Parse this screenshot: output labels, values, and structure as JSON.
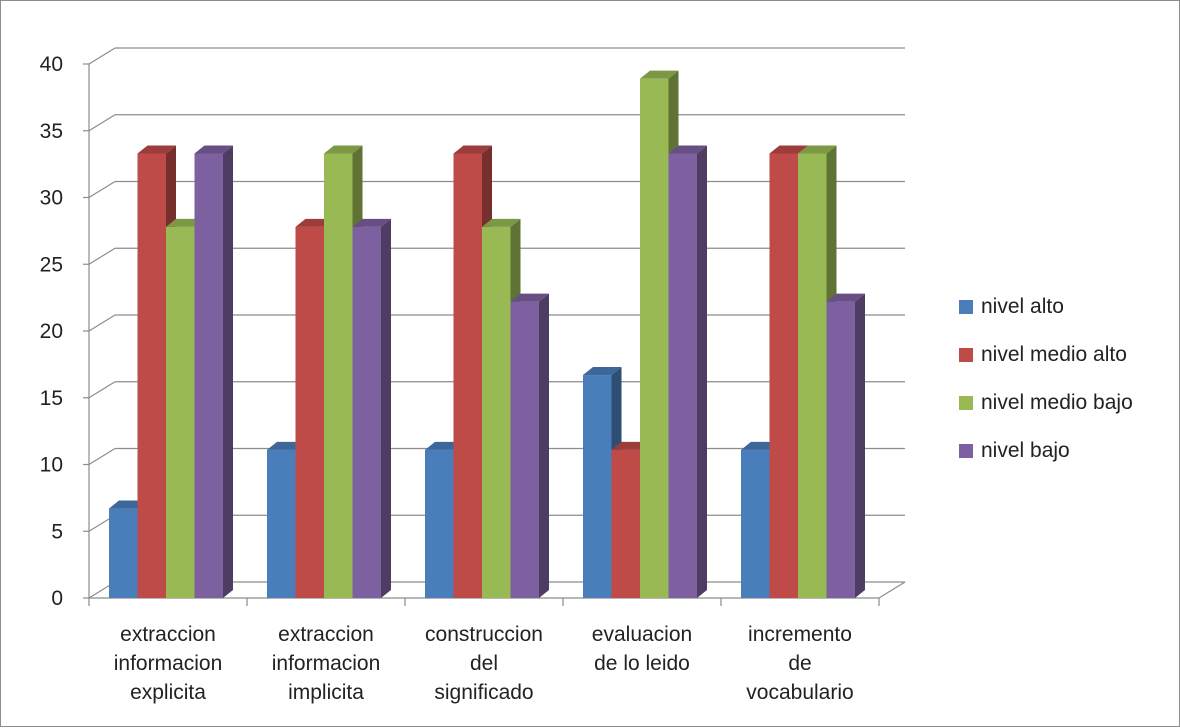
{
  "chart_data": {
    "type": "bar",
    "title": "",
    "xlabel": "",
    "ylabel": "",
    "ylim": [
      0,
      40
    ],
    "yticks": [
      0,
      5,
      10,
      15,
      20,
      25,
      30,
      35,
      40
    ],
    "grid": true,
    "legend_position": "right",
    "categories": [
      [
        "extraccion",
        "informacion",
        "explicita"
      ],
      [
        "extraccion",
        "informacion",
        "implicita"
      ],
      [
        "construccion",
        "del",
        "significado"
      ],
      [
        "evaluacion",
        "de lo leido"
      ],
      [
        "incremento",
        "de",
        "vocabulario"
      ]
    ],
    "series": [
      {
        "name": "nivel alto",
        "color": "#4a7ebb",
        "values": [
          6.7,
          11.1,
          11.1,
          16.7,
          11.1
        ]
      },
      {
        "name": "nivel medio alto",
        "color": "#be4b48",
        "values": [
          33.3,
          27.8,
          33.3,
          11.1,
          33.3
        ]
      },
      {
        "name": "nivel medio bajo",
        "color": "#98b954",
        "values": [
          27.8,
          33.3,
          27.8,
          38.9,
          33.3
        ]
      },
      {
        "name": "nivel bajo",
        "color": "#7d60a0",
        "values": [
          33.3,
          27.8,
          22.2,
          33.3,
          22.2
        ]
      }
    ]
  }
}
